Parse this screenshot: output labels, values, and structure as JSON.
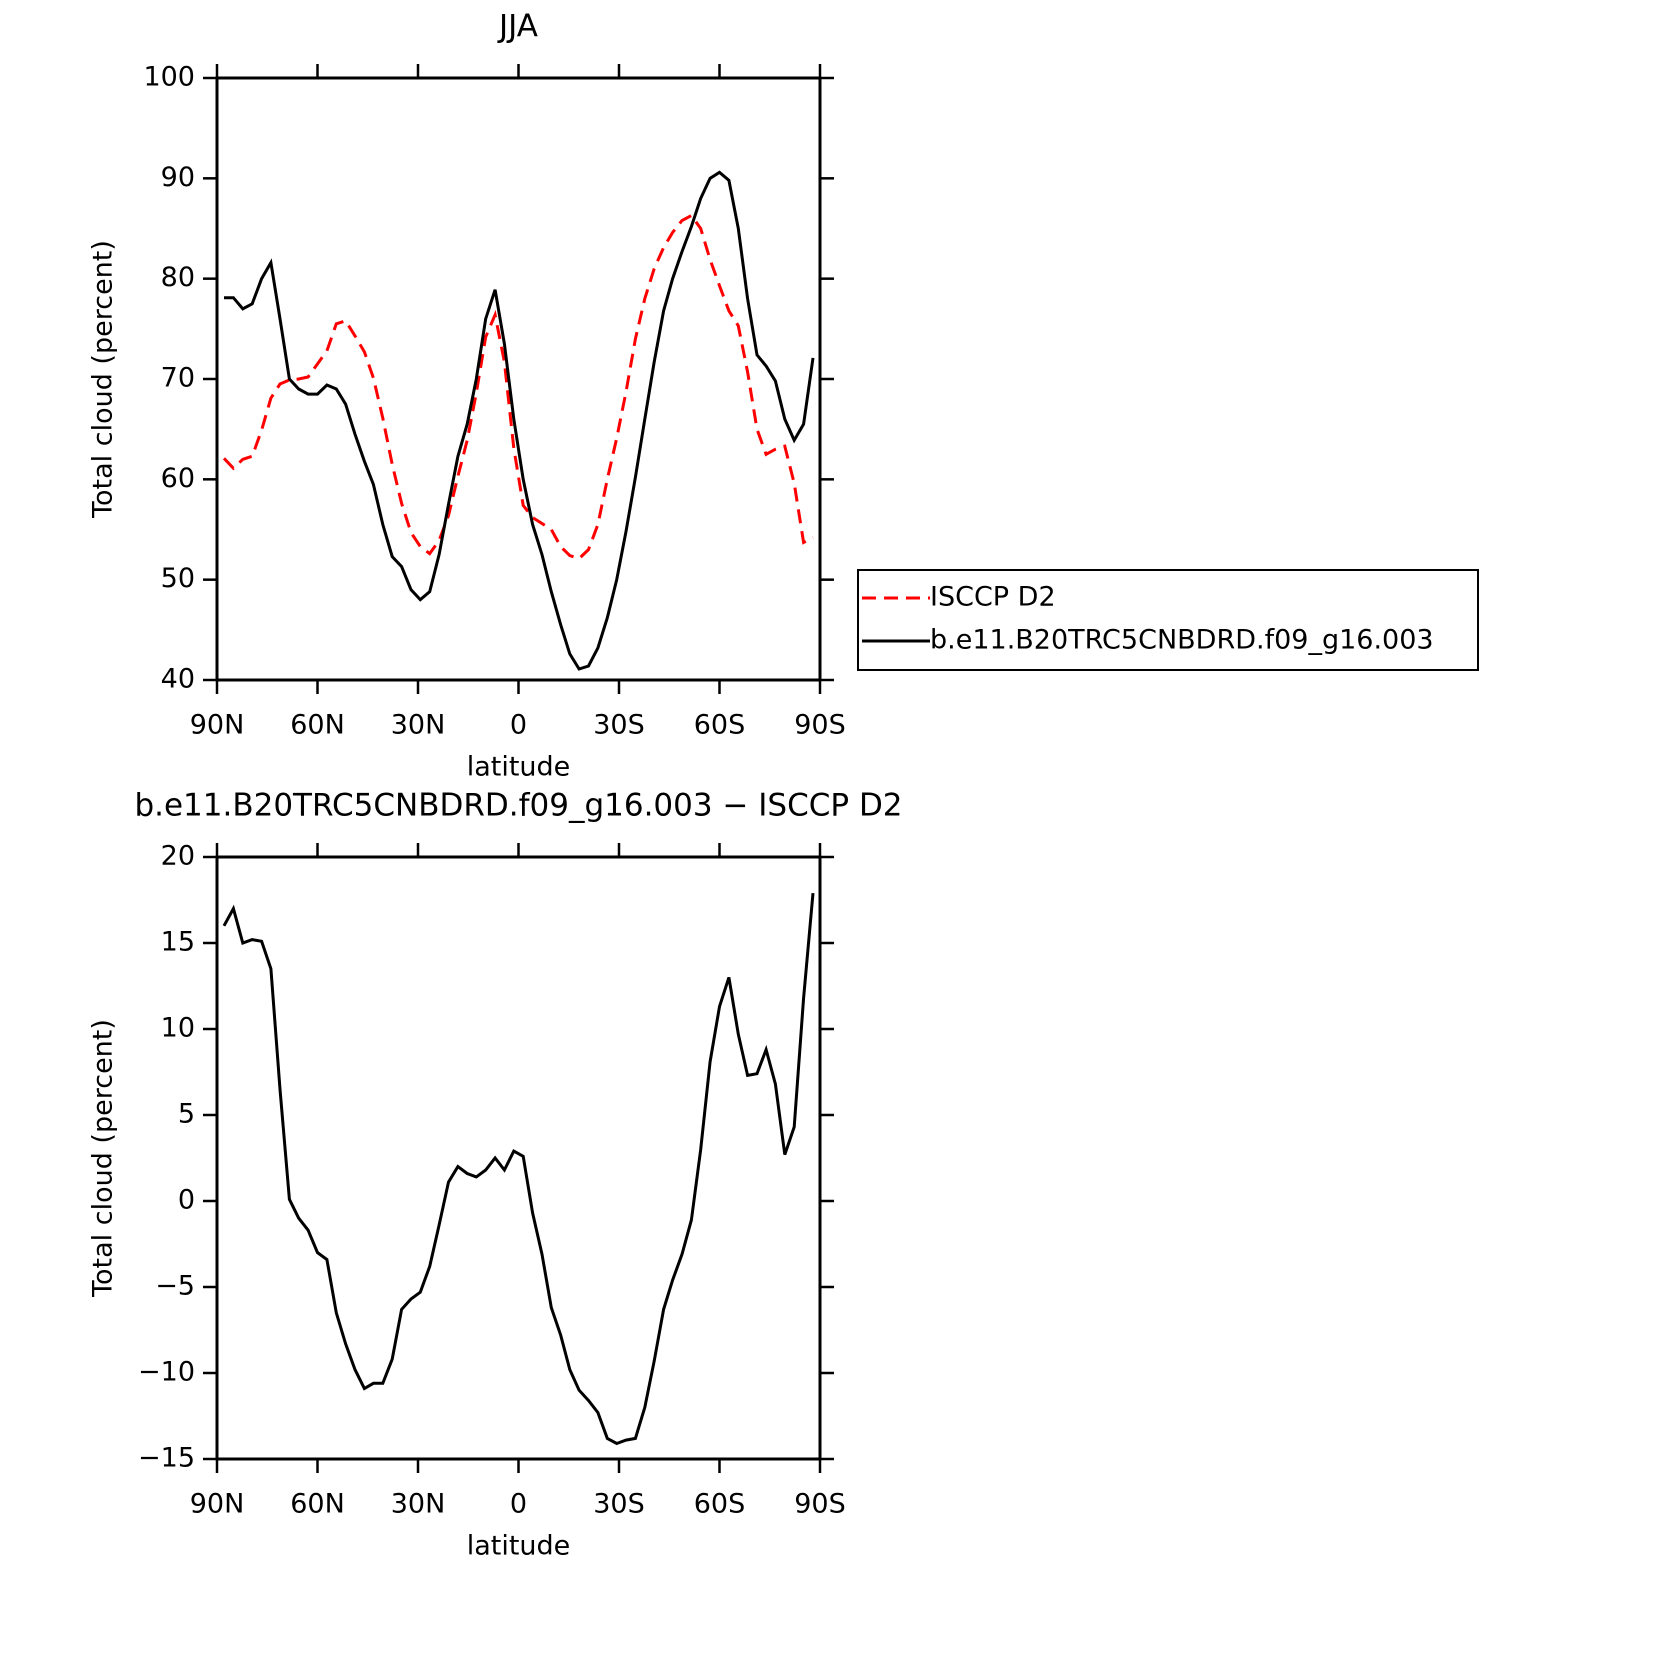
{
  "chart_data": [
    {
      "type": "line",
      "title": "JJA",
      "xlabel": "latitude",
      "ylabel": "Total cloud (percent)",
      "x": [
        87.9,
        85.1,
        82.3,
        79.5,
        76.7,
        73.9,
        71.2,
        68.4,
        65.6,
        62.8,
        60.0,
        57.2,
        54.4,
        51.6,
        48.8,
        46.0,
        43.3,
        40.5,
        37.7,
        34.9,
        32.1,
        29.3,
        26.5,
        23.7,
        20.9,
        18.1,
        15.3,
        12.6,
        9.8,
        7.0,
        4.2,
        1.4,
        -1.4,
        -4.2,
        -7.0,
        -9.8,
        -12.6,
        -15.3,
        -18.1,
        -20.9,
        -23.7,
        -26.5,
        -29.3,
        -32.1,
        -34.9,
        -37.7,
        -40.5,
        -43.3,
        -46.0,
        -48.8,
        -51.6,
        -54.4,
        -57.2,
        -60.0,
        -62.8,
        -65.6,
        -68.4,
        -71.2,
        -73.9,
        -76.7,
        -79.5,
        -82.3,
        -85.1,
        -87.9
      ],
      "series": [
        {
          "name": "ISCCP D2",
          "color": "#ff0000",
          "line_style": "dashed",
          "values": [
            62.1,
            61.1,
            62.0,
            62.3,
            64.9,
            68.1,
            69.5,
            69.9,
            70.0,
            70.2,
            71.5,
            72.8,
            75.5,
            75.8,
            74.3,
            72.7,
            70.1,
            66.1,
            61.5,
            57.6,
            54.7,
            53.3,
            52.6,
            53.9,
            56.4,
            60.3,
            63.9,
            68.6,
            74.2,
            76.4,
            71.7,
            63.1,
            57.4,
            56.2,
            55.6,
            55.0,
            53.3,
            52.4,
            52.1,
            53.0,
            55.5,
            60.0,
            64.1,
            68.7,
            74.0,
            78.0,
            81.0,
            83.1,
            84.6,
            85.8,
            86.3,
            85.0,
            81.9,
            79.3,
            76.8,
            75.3,
            70.7,
            65.0,
            62.5,
            63.0,
            63.3,
            59.6,
            53.7,
            54.2
          ]
        },
        {
          "name": "b.e11.B20TRC5CNBDRD.f09_g16.003",
          "color": "#000000",
          "line_style": "solid",
          "values": [
            78.1,
            78.1,
            77.0,
            77.5,
            80.0,
            81.6,
            76.0,
            70.0,
            69.0,
            68.5,
            68.5,
            69.4,
            69.0,
            67.5,
            64.5,
            61.8,
            59.5,
            55.5,
            52.3,
            51.3,
            49.0,
            48.0,
            48.8,
            52.5,
            57.5,
            62.3,
            65.5,
            70.0,
            76.0,
            78.9,
            73.5,
            66.0,
            60.0,
            55.5,
            52.5,
            48.8,
            45.5,
            42.6,
            41.1,
            41.4,
            43.2,
            46.2,
            50.0,
            54.8,
            60.2,
            66.0,
            71.7,
            76.8,
            80.0,
            82.7,
            85.2,
            88.0,
            90.0,
            90.6,
            89.8,
            85.0,
            78.0,
            72.4,
            71.3,
            69.8,
            66.0,
            63.9,
            65.5,
            72.1
          ]
        }
      ],
      "xlim": [
        90,
        -90
      ],
      "xticks": [
        {
          "value": 90,
          "label": "90N"
        },
        {
          "value": 60,
          "label": "60N"
        },
        {
          "value": 30,
          "label": "30N"
        },
        0,
        {
          "value": -30,
          "label": "30S"
        },
        {
          "value": -60,
          "label": "60S"
        },
        {
          "value": -90,
          "label": "90S"
        }
      ],
      "ylim": [
        40,
        100
      ],
      "yticks": [
        40,
        50,
        60,
        70,
        80,
        90,
        100
      ],
      "legend": "outside-right"
    },
    {
      "type": "line",
      "title": "b.e11.B20TRC5CNBDRD.f09_g16.003 − ISCCP D2",
      "xlabel": "latitude",
      "ylabel": "Total cloud (percent)",
      "x": [
        87.9,
        85.1,
        82.3,
        79.5,
        76.7,
        73.9,
        71.2,
        68.4,
        65.6,
        62.8,
        60.0,
        57.2,
        54.4,
        51.6,
        48.8,
        46.0,
        43.3,
        40.5,
        37.7,
        34.9,
        32.1,
        29.3,
        26.5,
        23.7,
        20.9,
        18.1,
        15.3,
        12.6,
        9.8,
        7.0,
        4.2,
        1.4,
        -1.4,
        -4.2,
        -7.0,
        -9.8,
        -12.6,
        -15.3,
        -18.1,
        -20.9,
        -23.7,
        -26.5,
        -29.3,
        -32.1,
        -34.9,
        -37.7,
        -40.5,
        -43.3,
        -46.0,
        -48.8,
        -51.6,
        -54.4,
        -57.2,
        -60.0,
        -62.8,
        -65.6,
        -68.4,
        -71.2,
        -73.9,
        -76.7,
        -79.5,
        -82.3,
        -85.1,
        -87.9
      ],
      "series": [
        {
          "color": "#000000",
          "line_style": "solid",
          "values": [
            16.0,
            17.0,
            15.0,
            15.2,
            15.1,
            13.5,
            6.5,
            0.1,
            -1.0,
            -1.7,
            -3.0,
            -3.4,
            -6.5,
            -8.3,
            -9.8,
            -10.9,
            -10.6,
            -10.6,
            -9.2,
            -6.3,
            -5.7,
            -5.3,
            -3.8,
            -1.4,
            1.1,
            2.0,
            1.6,
            1.4,
            1.8,
            2.5,
            1.8,
            2.9,
            2.6,
            -0.7,
            -3.1,
            -6.2,
            -7.8,
            -9.8,
            -11.0,
            -11.6,
            -12.3,
            -13.8,
            -14.1,
            -13.9,
            -13.8,
            -12.0,
            -9.3,
            -6.3,
            -4.6,
            -3.1,
            -1.1,
            3.0,
            8.1,
            11.3,
            13.0,
            9.7,
            7.3,
            7.4,
            8.8,
            6.8,
            2.7,
            4.3,
            11.8,
            17.9
          ]
        }
      ],
      "xlim": [
        90,
        -90
      ],
      "xticks": [
        {
          "value": 90,
          "label": "90N"
        },
        {
          "value": 60,
          "label": "60N"
        },
        {
          "value": 30,
          "label": "30N"
        },
        0,
        {
          "value": -30,
          "label": "30S"
        },
        {
          "value": -60,
          "label": "60S"
        },
        {
          "value": -90,
          "label": "90S"
        }
      ],
      "ylim": [
        -15,
        20
      ],
      "yticks": [
        {
          "value": -15,
          "label": "−15"
        },
        {
          "value": -10,
          "label": "−10"
        },
        {
          "value": -5,
          "label": "−5"
        },
        0,
        5,
        10,
        15,
        20
      ]
    }
  ]
}
